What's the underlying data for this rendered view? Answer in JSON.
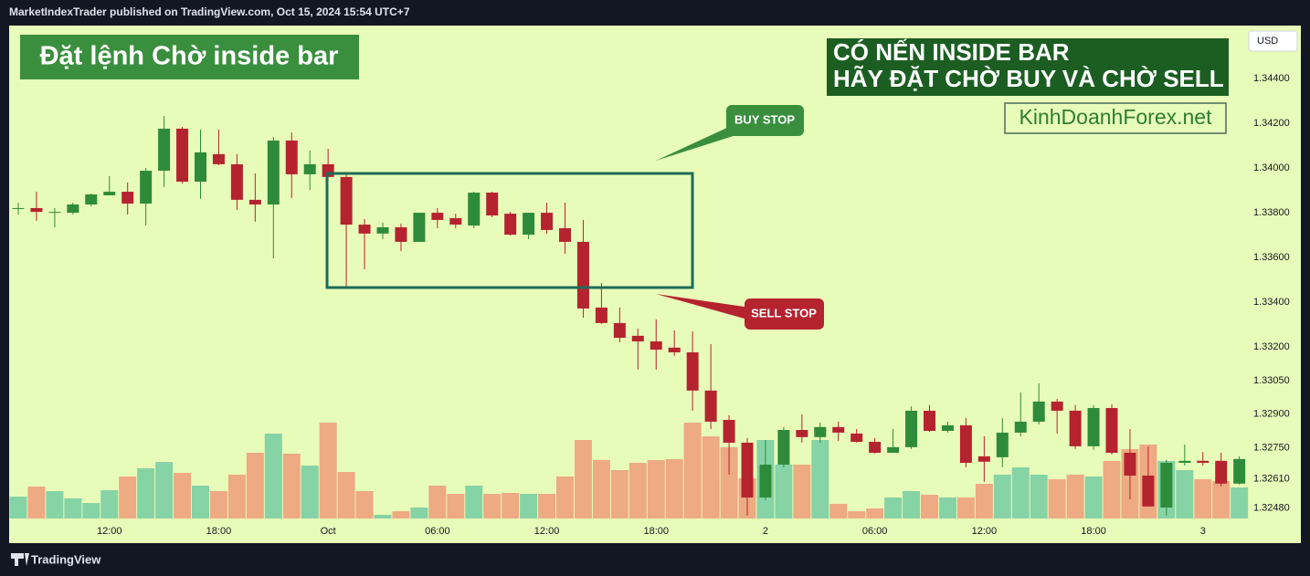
{
  "header": "MarketIndexTrader published on TradingView.com, Oct 15, 2024 15:54 UTC+7",
  "footer": "TradingView",
  "chart_data": {
    "type": "candlestick",
    "title": "Đặt lệnh Chờ inside bar",
    "currency": "USD",
    "notes": [
      "CÓ NẾN INSIDE BAR",
      "HÃY ĐẶT CHỜ BUY VÀ CHỜ SELL"
    ],
    "website": "KinhDoanhForex.net",
    "buy_label": "BUY STOP",
    "sell_label": "SELL STOP",
    "up_color": "#2e8b3a",
    "down_color": "#b5232f",
    "volume_up_color": "#86d3a6",
    "volume_down_color": "#eeaa82",
    "categories": [
      null,
      null,
      null,
      null,
      null,
      "12:00",
      null,
      null,
      null,
      null,
      null,
      "18:00",
      null,
      null,
      null,
      null,
      null,
      "Oct",
      null,
      null,
      null,
      null,
      null,
      "06:00",
      null,
      null,
      null,
      null,
      null,
      "12:00",
      null,
      null,
      null,
      null,
      null,
      "18:00",
      null,
      null,
      null,
      null,
      null,
      "2",
      null,
      null,
      null,
      null,
      null,
      "06:00",
      null,
      null,
      null,
      null,
      null,
      "12:00",
      null,
      null,
      null,
      null,
      null,
      "18:00",
      null,
      null,
      null,
      null,
      null,
      "3",
      null,
      null
    ],
    "open": [
      1.33821,
      1.33821,
      1.33804,
      1.338,
      1.33837,
      1.33878,
      1.33894,
      1.33841,
      1.33988,
      1.34176,
      1.33939,
      1.34062,
      1.34017,
      1.33858,
      1.33837,
      1.34123,
      1.33972,
      1.34017,
      1.3396,
      1.33747,
      1.33707,
      1.33735,
      1.3367,
      1.338,
      1.33776,
      1.33743,
      1.3389,
      1.33796,
      1.33702,
      1.338,
      1.33731,
      1.3367,
      1.33376,
      1.33307,
      1.3325,
      1.33225,
      1.33197,
      1.33176,
      1.33005,
      1.32874,
      1.32772,
      1.32527,
      1.32674,
      1.32829,
      1.32797,
      1.32842,
      1.32813,
      1.32776,
      1.32727,
      1.32752,
      1.32915,
      1.32825,
      1.3285,
      1.32711,
      1.32707,
      1.32817,
      1.32866,
      1.32956,
      1.32915,
      1.32756,
      1.32927,
      1.32727,
      1.32625,
      1.32482,
      1.32682,
      1.32691,
      1.32691,
      1.32589
    ],
    "high": [
      1.33845,
      1.33894,
      1.33821,
      1.33845,
      1.33886,
      1.33964,
      1.33935,
      1.34,
      1.34233,
      1.34184,
      1.34172,
      1.34172,
      1.34062,
      1.33976,
      1.34139,
      1.34159,
      1.34078,
      1.34086,
      1.33976,
      1.33772,
      1.33756,
      1.33751,
      1.338,
      1.33821,
      1.33796,
      1.33894,
      1.33894,
      1.33804,
      1.338,
      1.33845,
      1.33845,
      1.33768,
      1.33486,
      1.33376,
      1.33282,
      1.33323,
      1.33274,
      1.3327,
      1.33213,
      1.32895,
      1.32793,
      1.32784,
      1.32842,
      1.32899,
      1.32862,
      1.32866,
      1.32833,
      1.32793,
      1.32833,
      1.32935,
      1.3294,
      1.32866,
      1.32882,
      1.32801,
      1.32882,
      1.32997,
      1.33037,
      1.32968,
      1.3294,
      1.3294,
      1.32944,
      1.32833,
      1.32756,
      1.32695,
      1.32764,
      1.32731,
      1.32727,
      1.32711
    ],
    "low": [
      1.33792,
      1.33764,
      1.33735,
      1.33792,
      1.33829,
      1.33878,
      1.33792,
      1.33743,
      1.33915,
      1.33931,
      1.33862,
      1.34013,
      1.33813,
      1.3376,
      1.33596,
      1.33866,
      1.33902,
      1.33947,
      1.33466,
      1.33547,
      1.33682,
      1.33629,
      1.3367,
      1.33731,
      1.33731,
      1.33731,
      1.3378,
      1.33698,
      1.33682,
      1.33707,
      1.33617,
      1.33331,
      1.33303,
      1.33221,
      1.33099,
      1.33099,
      1.3316,
      1.32915,
      1.32833,
      1.32629,
      1.32446,
      1.32515,
      1.32662,
      1.32772,
      1.32772,
      1.3278,
      1.32772,
      1.32723,
      1.32727,
      1.32744,
      1.32821,
      1.32817,
      1.32662,
      1.32597,
      1.32662,
      1.32801,
      1.32854,
      1.32813,
      1.32744,
      1.3274,
      1.32719,
      1.32519,
      1.32487,
      1.32446,
      1.3267,
      1.3267,
      1.32576,
      1.32585
    ],
    "close": [
      1.33821,
      1.33804,
      1.33804,
      1.33837,
      1.33882,
      1.33894,
      1.33841,
      1.33988,
      1.34176,
      1.33939,
      1.3407,
      1.34017,
      1.33858,
      1.33837,
      1.34123,
      1.33972,
      1.34017,
      1.3396,
      1.33747,
      1.33707,
      1.33735,
      1.3367,
      1.338,
      1.33768,
      1.33747,
      1.3389,
      1.33788,
      1.33702,
      1.338,
      1.33723,
      1.3367,
      1.33372,
      1.33307,
      1.33241,
      1.33225,
      1.33188,
      1.33176,
      1.33005,
      1.32866,
      1.32772,
      1.32527,
      1.32674,
      1.32829,
      1.32797,
      1.32842,
      1.32817,
      1.32776,
      1.32727,
      1.32752,
      1.32915,
      1.32825,
      1.3285,
      1.32682,
      1.32687,
      1.32817,
      1.32866,
      1.32956,
      1.32915,
      1.32756,
      1.32927,
      1.32727,
      1.32625,
      1.32487,
      1.32682,
      1.32691,
      1.32682,
      1.32589,
      1.32699
    ],
    "volume": [
      24,
      35,
      30,
      22,
      17,
      31,
      46,
      55,
      62,
      50,
      36,
      30,
      48,
      72,
      93,
      71,
      58,
      105,
      51,
      30,
      4,
      8,
      12,
      36,
      27,
      36,
      27,
      28,
      27,
      27,
      46,
      86,
      64,
      53,
      61,
      64,
      65,
      105,
      90,
      78,
      44,
      86,
      59,
      59,
      86,
      16,
      8,
      11,
      23,
      30,
      26,
      23,
      23,
      38,
      48,
      56,
      48,
      43,
      48,
      46,
      63,
      76,
      81,
      63,
      53,
      43,
      41,
      34
    ],
    "ylim": [
      1.32425,
      1.34637
    ],
    "yticks": [
      {
        "value": 1.344,
        "label": "1.34400"
      },
      {
        "value": 1.342,
        "label": "1.34200"
      },
      {
        "value": 1.34,
        "label": "1.34000"
      },
      {
        "value": 1.338,
        "label": "1.33800"
      },
      {
        "value": 1.336,
        "label": "1.33600"
      },
      {
        "value": 1.334,
        "label": "1.33400"
      },
      {
        "value": 1.332,
        "label": "1.33200"
      },
      {
        "value": 1.3305,
        "label": "1.33050"
      },
      {
        "value": 1.329,
        "label": "1.32900"
      },
      {
        "value": 1.3275,
        "label": "1.32750"
      },
      {
        "value": 1.3261,
        "label": "1.32610"
      },
      {
        "value": 1.3248,
        "label": "1.32480"
      }
    ],
    "grid": false
  }
}
